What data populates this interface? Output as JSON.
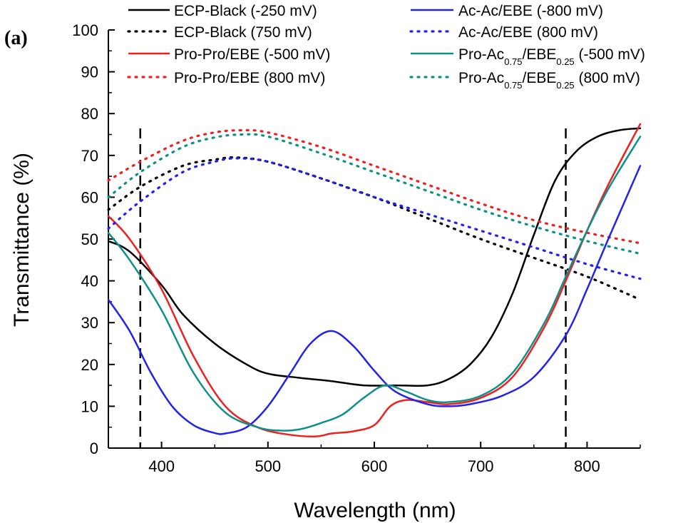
{
  "panel_label": "(a)",
  "chart_data": {
    "type": "line",
    "xlabel": "Wavelength (nm)",
    "ylabel": "Transmittance (%)",
    "xlim": [
      350,
      850
    ],
    "ylim": [
      0,
      100
    ],
    "x_ticks": [
      400,
      500,
      600,
      700,
      800
    ],
    "y_ticks": [
      0,
      10,
      20,
      30,
      40,
      50,
      60,
      70,
      80,
      90,
      100
    ],
    "grid": false,
    "legend_position": "top, two columns",
    "reference_lines": [
      380,
      780
    ],
    "series": [
      {
        "name": "ECP-Black (-250 mV)",
        "name_parts": [
          {
            "t": "ECP-Black (-250 mV)"
          }
        ],
        "color": "#000000",
        "style": "solid",
        "x": [
          350,
          370,
          400,
          420,
          450,
          480,
          500,
          530,
          560,
          590,
          620,
          650,
          670,
          690,
          710,
          730,
          750,
          770,
          790,
          810,
          830,
          850
        ],
        "y": [
          49.5,
          47,
          39,
          32,
          25,
          20,
          17.8,
          16.8,
          16,
          15,
          15,
          15,
          16.5,
          20,
          26.5,
          37,
          51,
          64,
          71,
          74.5,
          76,
          76.5
        ]
      },
      {
        "name": "ECP-Black (750 mV)",
        "name_parts": [
          {
            "t": "ECP-Black (750 mV)"
          }
        ],
        "color": "#000000",
        "style": "dotted",
        "x": [
          350,
          380,
          420,
          450,
          470,
          500,
          550,
          600,
          650,
          700,
          750,
          800,
          850
        ],
        "y": [
          57,
          62.5,
          67.5,
          69,
          69.5,
          68.5,
          64.5,
          60,
          55,
          50,
          45.5,
          41,
          35.5
        ]
      },
      {
        "name": "Pro-Pro/EBE (-500 mV)",
        "name_parts": [
          {
            "t": "Pro-Pro/EBE (-500 mV)"
          }
        ],
        "color": "#ee2020",
        "style": "solid",
        "x": [
          350,
          370,
          400,
          430,
          460,
          490,
          520,
          545,
          560,
          580,
          600,
          615,
          630,
          650,
          670,
          700,
          730,
          760,
          780,
          800,
          820,
          850
        ],
        "y": [
          55.5,
          50,
          38,
          22,
          10,
          5,
          3.2,
          2.8,
          3.5,
          4,
          5.5,
          10,
          11.5,
          11,
          10.5,
          12,
          17,
          29,
          40,
          52,
          63,
          77.5
        ]
      },
      {
        "name": "Pro-Pro/EBE (800 mV)",
        "name_parts": [
          {
            "t": "Pro-Pro/EBE (800 mV)"
          }
        ],
        "color": "#ee2020",
        "style": "dotted",
        "x": [
          350,
          380,
          420,
          450,
          475,
          500,
          550,
          600,
          650,
          700,
          750,
          800,
          850
        ],
        "y": [
          64,
          68.5,
          73.5,
          75.5,
          76,
          75.5,
          72,
          67.5,
          63,
          58.5,
          54.5,
          51.5,
          49
        ]
      },
      {
        "name": "Ac-Ac/EBE (-800 mV)",
        "name_parts": [
          {
            "t": "Ac-Ac/EBE (-800 mV)"
          }
        ],
        "color": "#2222ee",
        "style": "solid",
        "x": [
          350,
          370,
          390,
          410,
          430,
          450,
          460,
          480,
          500,
          520,
          540,
          560,
          580,
          600,
          620,
          650,
          670,
          690,
          720,
          750,
          780,
          800,
          820,
          850
        ],
        "y": [
          35.5,
          28,
          18,
          10,
          5.5,
          3.6,
          3.5,
          5,
          10,
          17.5,
          25,
          28,
          24.5,
          18.5,
          13.5,
          10.5,
          10,
          10.5,
          12.5,
          17,
          27,
          38,
          50,
          67.5
        ]
      },
      {
        "name": "Ac-Ac/EBE (800 mV)",
        "name_parts": [
          {
            "t": "Ac-Ac/EBE (800 mV)"
          }
        ],
        "color": "#2222ee",
        "style": "dotted",
        "x": [
          350,
          380,
          420,
          450,
          470,
          500,
          550,
          600,
          650,
          700,
          750,
          800,
          850
        ],
        "y": [
          52.5,
          59,
          66,
          68.5,
          69.3,
          68.5,
          64.5,
          60,
          56,
          52,
          48,
          44,
          40.5
        ]
      },
      {
        "name": "Pro-Ac0.75/EBE0.25 (-500 mV)",
        "name_parts": [
          {
            "t": "Pro-Ac"
          },
          {
            "t": "0.75",
            "sub": true
          },
          {
            "t": "/EBE"
          },
          {
            "t": "0.25",
            "sub": true
          },
          {
            "t": " (-500 mV)"
          }
        ],
        "color": "#0e8f8a",
        "style": "solid",
        "x": [
          350,
          370,
          400,
          430,
          460,
          490,
          510,
          530,
          550,
          570,
          590,
          610,
          630,
          650,
          670,
          700,
          730,
          760,
          780,
          800,
          820,
          850
        ],
        "y": [
          51.5,
          45,
          33,
          18,
          8.5,
          5,
          4.2,
          4.5,
          6,
          8,
          12,
          15,
          13.5,
          11.5,
          11,
          12.5,
          18,
          30,
          41,
          52,
          62,
          74.5
        ]
      },
      {
        "name": "Pro-Ac0.75/EBE0.25 (800 mV)",
        "name_parts": [
          {
            "t": "Pro-Ac"
          },
          {
            "t": "0.75",
            "sub": true
          },
          {
            "t": "/EBE"
          },
          {
            "t": "0.25",
            "sub": true
          },
          {
            "t": " (800 mV)"
          }
        ],
        "color": "#0e8f8a",
        "style": "dotted",
        "x": [
          350,
          380,
          420,
          450,
          475,
          500,
          550,
          600,
          650,
          700,
          750,
          800,
          850
        ],
        "y": [
          60,
          66,
          72,
          74.3,
          75,
          74.5,
          70.5,
          66,
          61.5,
          57,
          53,
          49.5,
          46.5
        ]
      }
    ]
  }
}
